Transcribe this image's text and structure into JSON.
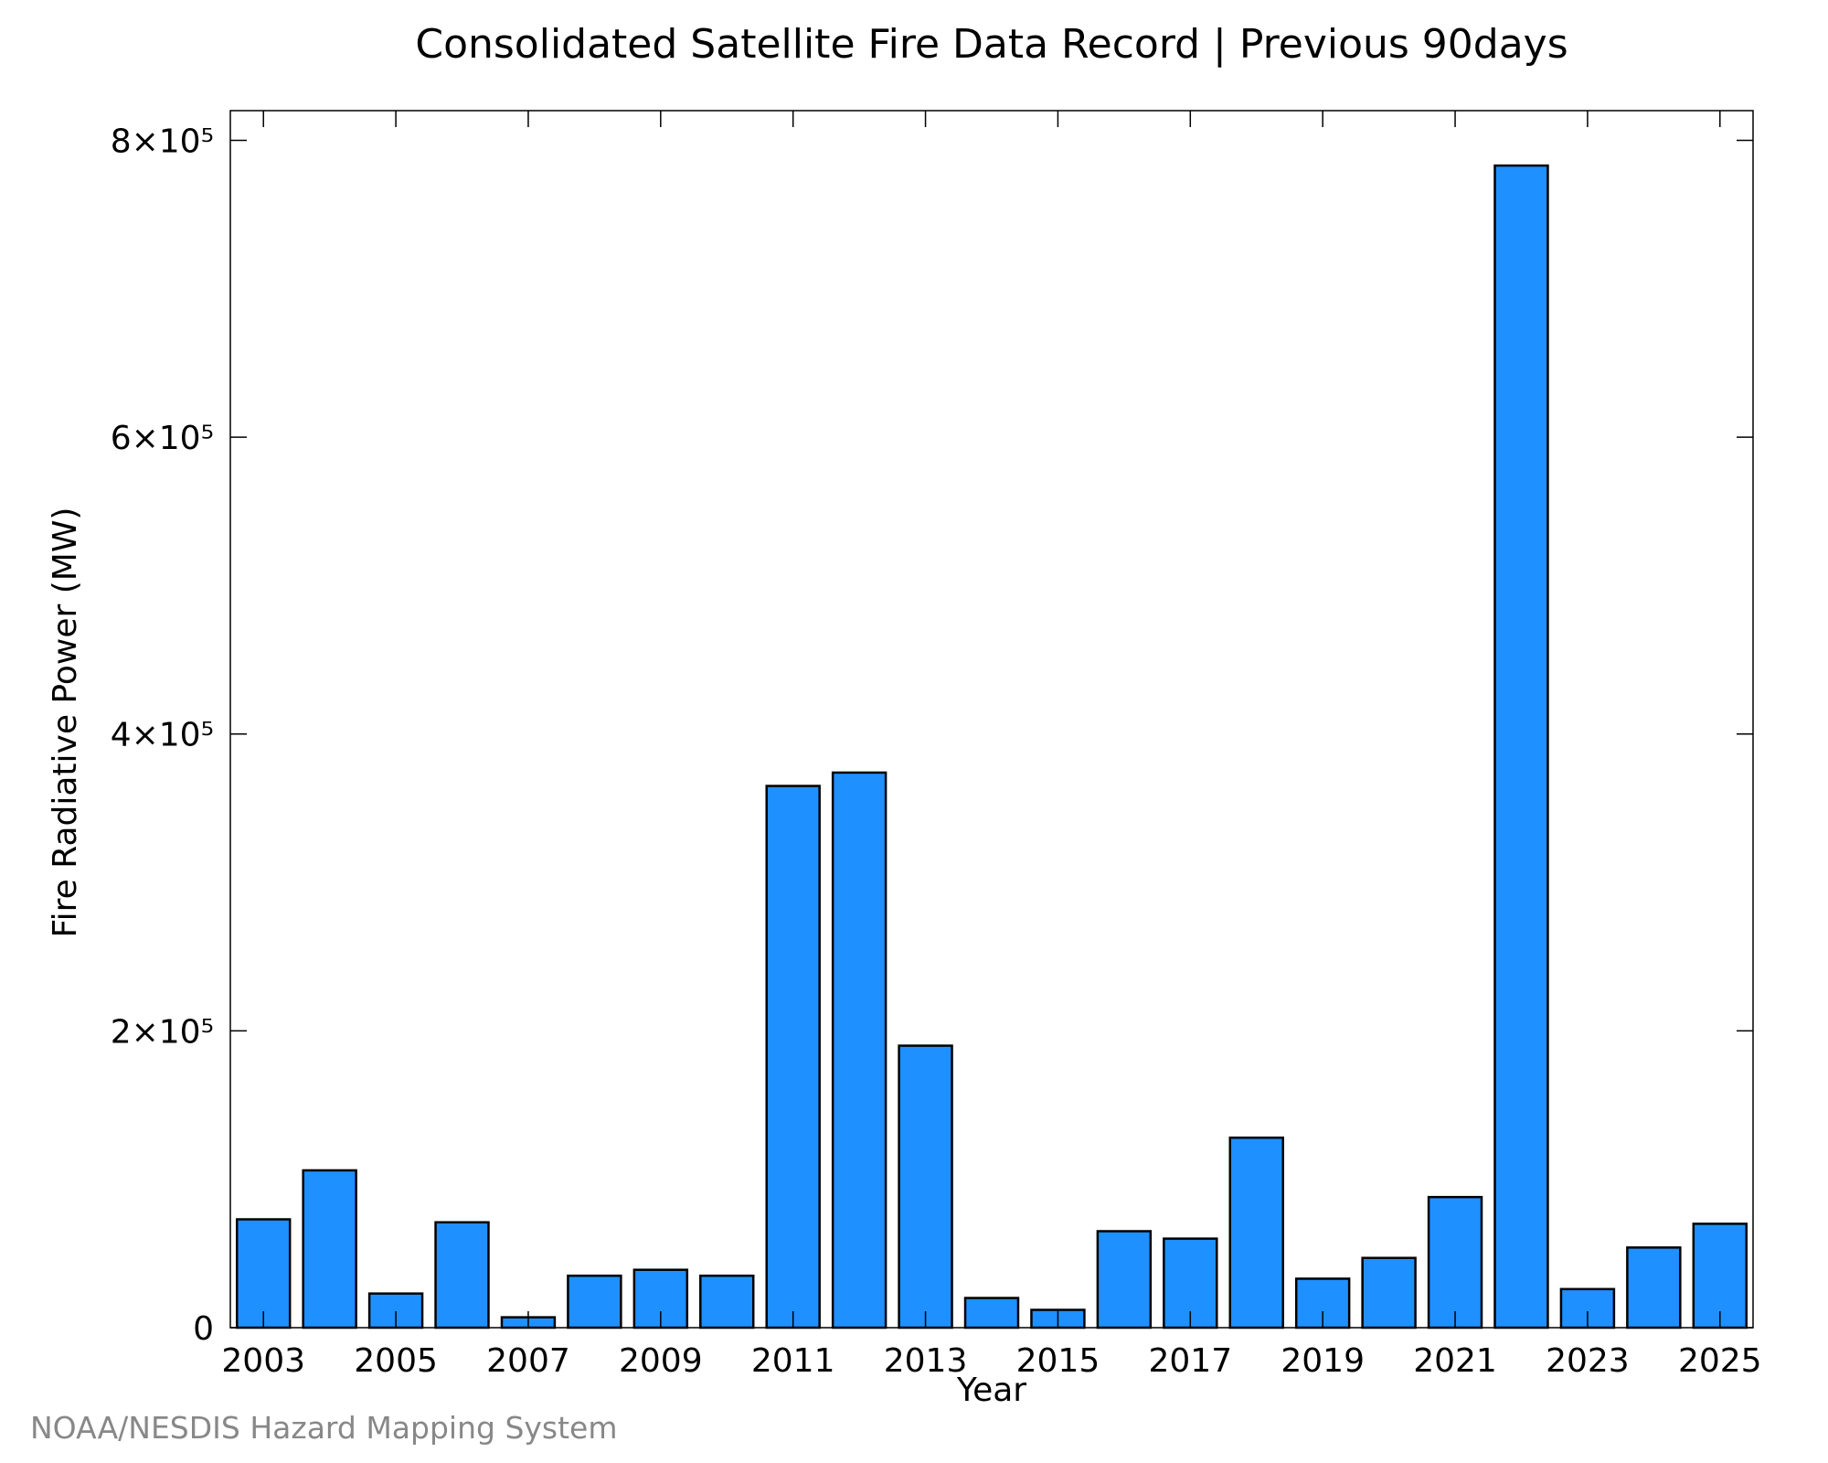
{
  "chart_data": {
    "type": "bar",
    "title": "Consolidated Satellite Fire Data Record | Previous 90days",
    "xlabel": "Year",
    "ylabel": "Fire Radiative Power (MW)",
    "categories": [
      "2003",
      "2004",
      "2005",
      "2006",
      "2007",
      "2008",
      "2009",
      "2010",
      "2011",
      "2012",
      "2013",
      "2014",
      "2015",
      "2016",
      "2017",
      "2018",
      "2019",
      "2020",
      "2021",
      "2022",
      "2023",
      "2024",
      "2025"
    ],
    "values": [
      73000,
      106000,
      23000,
      71000,
      7000,
      35000,
      39000,
      35000,
      365000,
      374000,
      190000,
      20000,
      12000,
      65000,
      60000,
      128000,
      33000,
      47000,
      88000,
      783000,
      26000,
      54000,
      70000
    ],
    "x_tick_labels": [
      "2003",
      "2005",
      "2007",
      "2009",
      "2011",
      "2013",
      "2015",
      "2017",
      "2019",
      "2021",
      "2023",
      "2025"
    ],
    "y_ticks": [
      {
        "value": 0,
        "label": "0"
      },
      {
        "value": 200000,
        "label": "2×10⁵"
      },
      {
        "value": 400000,
        "label": "4×10⁵"
      },
      {
        "value": 600000,
        "label": "6×10⁵"
      },
      {
        "value": 800000,
        "label": "8×10⁵"
      }
    ],
    "ylim": [
      0,
      820000
    ],
    "grid": false,
    "colors": {
      "bar_fill": "#1e90ff",
      "bar_stroke": "#000000",
      "axis": "#000000"
    }
  },
  "footer": {
    "credit": "NOAA/NESDIS Hazard Mapping System"
  }
}
